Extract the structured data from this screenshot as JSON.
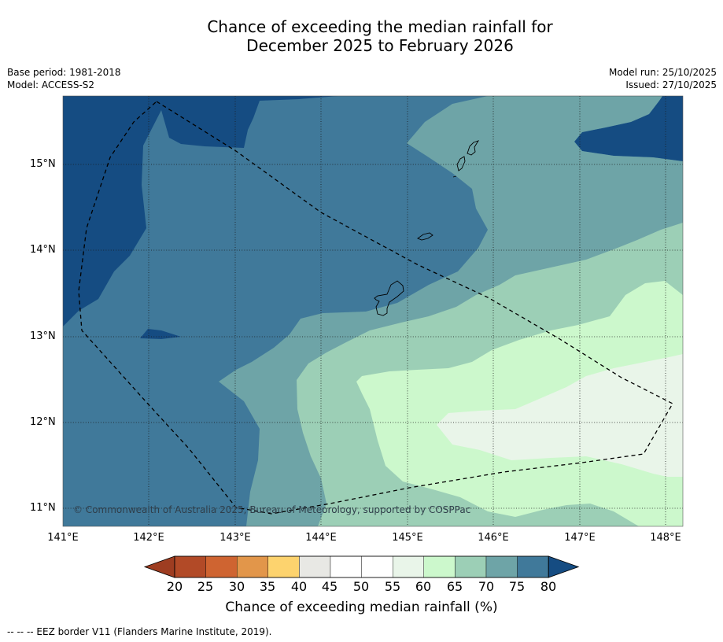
{
  "title": {
    "line1": "Chance of exceeding the median rainfall for",
    "line2": "December 2025 to February 2026"
  },
  "meta": {
    "base_period": "Base period: 1981-2018",
    "model": "Model: ACCESS-S2",
    "model_run": "Model run: 25/10/2025",
    "issued": "Issued: 27/10/2025"
  },
  "axes": {
    "longitude": [
      "141°E",
      "142°E",
      "143°E",
      "144°E",
      "145°E",
      "146°E",
      "147°E",
      "148°E"
    ],
    "latitude": [
      "15°N",
      "14°N",
      "13°N",
      "12°N",
      "11°N"
    ]
  },
  "colorbar": {
    "ticks": [
      "20",
      "25",
      "30",
      "35",
      "40",
      "45",
      "50",
      "55",
      "60",
      "65",
      "70",
      "75",
      "80"
    ],
    "colors": [
      "#b24a27",
      "#cf6431",
      "#e2964a",
      "#fdd36e",
      "#e8e8e4",
      "#ffffff",
      "#ffffff",
      "#e9f5e9",
      "#ccf8cc",
      "#9ccfb6",
      "#6ea4a7",
      "#40799a"
    ],
    "under_color": "#9e3d21",
    "over_color": "#154c82",
    "label": "Chance of exceeding median rainfall (%)"
  },
  "copyright": "© Commonwealth of Australia 2025, Bureau of Meteorology, supported by COSPPac",
  "footnote": "--  --  -- EEZ border V11 (Flanders Marine Institute, 2019)."
}
